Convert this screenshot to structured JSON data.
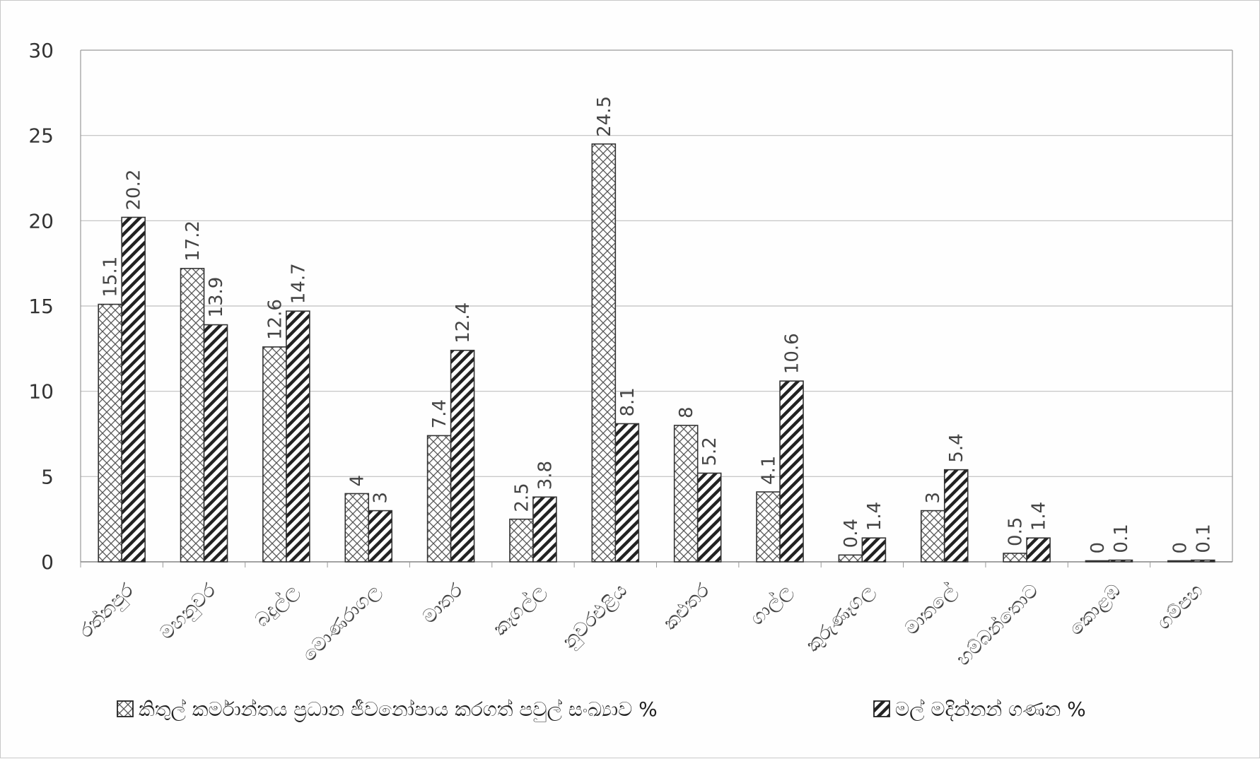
{
  "chart_data": {
    "type": "bar",
    "categories": [
      "රත්නපුර",
      "මහනුවර",
      "බදුල්ල",
      "මොණරාගල",
      "මාතර",
      "කෑගල්ල",
      "නුවරඑළිය",
      "කළුතර",
      "ගාල්ල",
      "කුරුණෑගල",
      "මාතලේ",
      "හම්බන්තොට",
      "කොළඹ",
      "ගම්පහ"
    ],
    "series": [
      {
        "name": "කිතුල් කර්මාන්තය ප්‍රධාන ජීවනෝපාය කරගත් පවුල් සංඛ්‍යාව %",
        "values": [
          15.1,
          17.2,
          12.6,
          4,
          7.4,
          2.5,
          24.5,
          8,
          4.1,
          0.4,
          3,
          0.5,
          0,
          0
        ],
        "pattern": "crosshatch"
      },
      {
        "name": "මල් මදින්නන් ගණන %",
        "values": [
          20.2,
          13.9,
          14.7,
          3,
          12.4,
          3.8,
          8.1,
          5.2,
          10.6,
          1.4,
          5.4,
          1.4,
          0.1,
          0.1
        ],
        "pattern": "diagonal"
      }
    ],
    "ylim": [
      0,
      30
    ],
    "yticks": [
      0,
      5,
      10,
      15,
      20,
      25,
      30
    ],
    "grid": true,
    "legend_position": "bottom",
    "colors": {
      "bar_fill": "#ffffff",
      "bar_stroke": "#333333",
      "grid": "#bfbfbf"
    }
  }
}
